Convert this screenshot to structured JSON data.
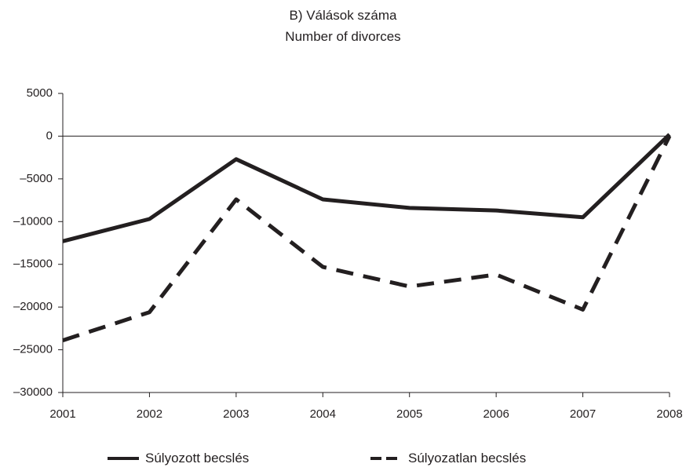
{
  "title": "B) Válások száma",
  "subtitle": "Number of divorces",
  "chart_data": {
    "type": "line",
    "title": "B) Válások száma",
    "subtitle": "Number of divorces",
    "xlabel": "",
    "ylabel": "",
    "categories": [
      "2001",
      "2002",
      "2003",
      "2004",
      "2005",
      "2006",
      "2007",
      "2008"
    ],
    "ylim": [
      -30000,
      5000
    ],
    "yticks": [
      5000,
      0,
      -5000,
      -10000,
      -15000,
      -20000,
      -25000,
      -30000
    ],
    "ytick_labels": [
      "5000",
      "0",
      "–5000",
      "–10000",
      "–15000",
      "–20000",
      "–25000",
      "–30000"
    ],
    "grid": false,
    "zero_line": true,
    "legend_position": "bottom",
    "series": [
      {
        "name": "Súlyozott becslés",
        "style": "solid",
        "color": "#231f20",
        "values": [
          -12300,
          -9700,
          -2700,
          -7400,
          -8400,
          -8700,
          -9500,
          200
        ]
      },
      {
        "name": "Súlyozatlan becslés",
        "style": "dashed",
        "color": "#231f20",
        "values": [
          -23900,
          -20600,
          -7400,
          -15300,
          -17600,
          -16200,
          -20300,
          0
        ]
      }
    ]
  }
}
